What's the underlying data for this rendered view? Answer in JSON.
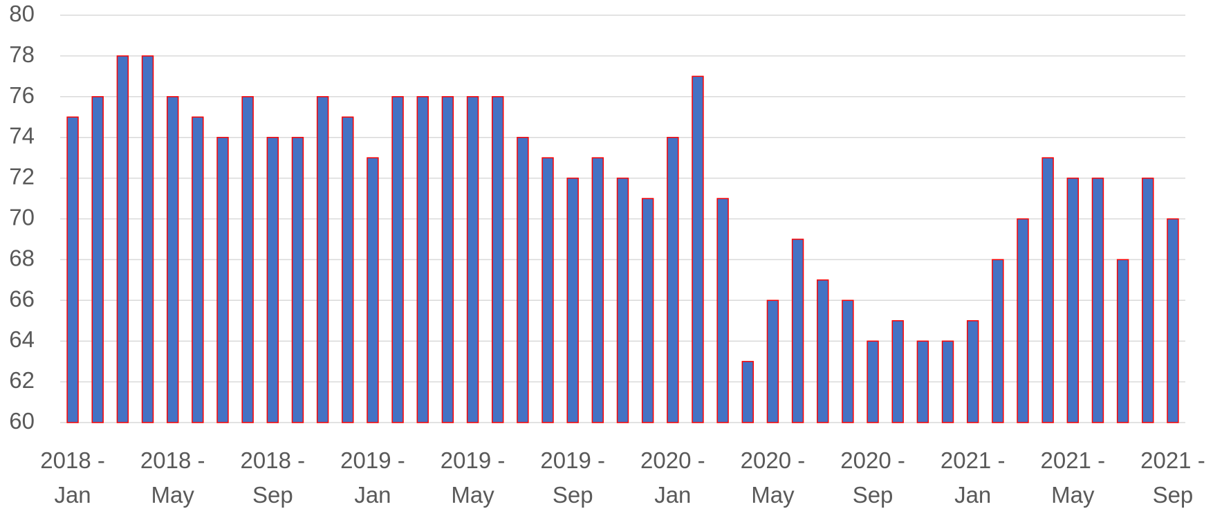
{
  "chart_data": {
    "type": "bar",
    "categories": [
      "2018 -\nJan",
      null,
      null,
      null,
      "2018 -\nMay",
      null,
      null,
      null,
      "2018 -\nSep",
      null,
      null,
      null,
      "2019 -\nJan",
      null,
      null,
      null,
      "2019 -\nMay",
      null,
      null,
      null,
      "2019 -\nSep",
      null,
      null,
      null,
      "2020 -\nJan",
      null,
      null,
      null,
      "2020 -\nMay",
      null,
      null,
      null,
      "2020 -\nSep",
      null,
      null,
      null,
      "2021 -\nJan",
      null,
      null,
      null,
      "2021 -\nMay",
      null,
      null,
      null,
      "2021 -\nSep"
    ],
    "values": [
      75,
      76,
      78,
      78,
      76,
      75,
      74,
      76,
      74,
      74,
      76,
      75,
      73,
      76,
      76,
      76,
      76,
      76,
      74,
      73,
      72,
      73,
      72,
      71,
      74,
      77,
      71,
      63,
      66,
      69,
      67,
      66,
      64,
      65,
      64,
      64,
      65,
      68,
      70,
      73,
      72,
      72,
      68,
      72,
      70
    ],
    "color": "#4472c4",
    "edge_color": "#ff0000",
    "ylim": [
      60,
      80
    ],
    "yticks": [
      60,
      62,
      64,
      66,
      68,
      70,
      72,
      74,
      76,
      78,
      80
    ],
    "grid": true
  }
}
